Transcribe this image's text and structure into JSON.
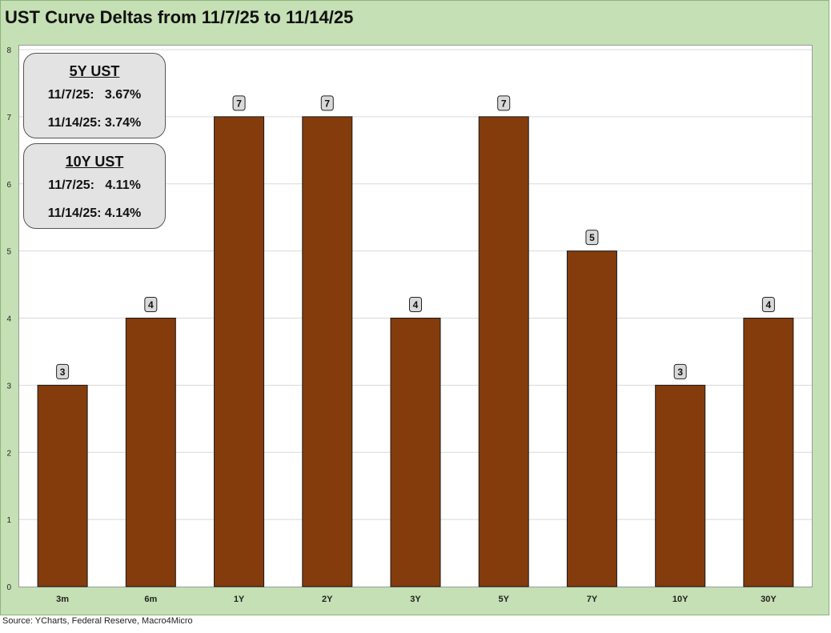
{
  "title": "UST Curve Deltas from 11/7/25 to 11/14/25",
  "source": "Source: YCharts, Federal Reserve, Macro4Micro",
  "colors": {
    "bar": "#843c0c",
    "bar_stroke": "#1a1a1a",
    "background": "#c5e0b4",
    "label_box": "#d9d9d9"
  },
  "info_boxes": [
    {
      "header": "5Y UST",
      "rows": [
        "11/7/25:   3.67%",
        "11/14/25: 3.74%"
      ]
    },
    {
      "header": "10Y UST",
      "rows": [
        "11/7/25:   4.11%",
        "11/14/25: 4.14%"
      ]
    }
  ],
  "chart_data": {
    "type": "bar",
    "title": "UST Curve Deltas from 11/7/25 to 11/14/25",
    "categories": [
      "3m",
      "6m",
      "1Y",
      "2Y",
      "3Y",
      "5Y",
      "7Y",
      "10Y",
      "30Y"
    ],
    "values": [
      3,
      4,
      7,
      7,
      4,
      7,
      5,
      3,
      4
    ],
    "xlabel": "",
    "ylabel": "",
    "ylim": [
      0,
      8
    ],
    "yticks": [
      0,
      1,
      2,
      3,
      4,
      5,
      6,
      7,
      8
    ],
    "grid": true,
    "data_labels": true
  }
}
